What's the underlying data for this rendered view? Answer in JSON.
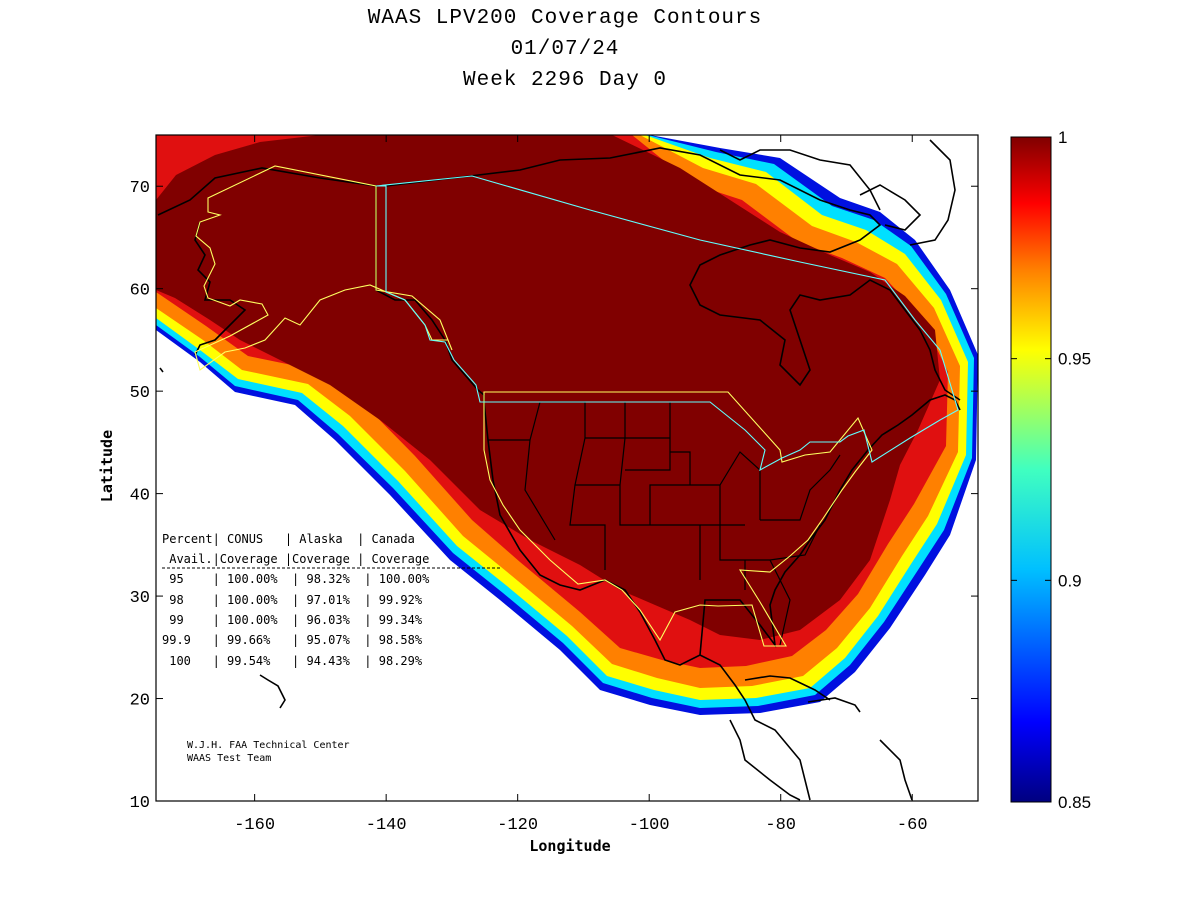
{
  "title": {
    "line1": "WAAS LPV200 Coverage Contours",
    "line2": "01/07/24",
    "line3": "Week 2296 Day 0"
  },
  "axes": {
    "xlabel": "Longitude",
    "ylabel": "Latitude",
    "xlim": [
      -175,
      -50
    ],
    "ylim": [
      10,
      75
    ],
    "xticks": [
      -160,
      -140,
      -120,
      -100,
      -80,
      -60
    ],
    "yticks": [
      10,
      20,
      30,
      40,
      50,
      60,
      70
    ]
  },
  "colorbar": {
    "range": [
      0.85,
      1
    ],
    "ticks": [
      {
        "value": 1,
        "label": "1"
      },
      {
        "value": 0.95,
        "label": "0.95"
      },
      {
        "value": 0.9,
        "label": "0.9"
      },
      {
        "value": 0.85,
        "label": "0.85"
      }
    ],
    "colormap": "jet"
  },
  "colors": {
    "full_coverage": "#800000",
    "contour_red": "#e01010",
    "contour_orange": "#ff8000",
    "contour_yellow": "#ffff00",
    "contour_cyan": "#00e0ff",
    "contour_blue": "#0010e0",
    "conus_alaska_boundary": "#ffff60",
    "canada_boundary": "#60ffff"
  },
  "table": {
    "header1": "Percent| CONUS   | Alaska  | Canada",
    "header2": " Avail.|Coverage |Coverage | Coverage",
    "rows": [
      " 95    | 100.00%  | 98.32%  | 100.00%",
      " 98    | 100.00%  | 97.01%  | 99.92%",
      " 99    | 100.00%  | 96.03%  | 99.34%",
      "99.9   | 99.66%   | 95.07%  | 98.58%",
      " 100   | 99.54%   | 94.43%  | 98.29%"
    ]
  },
  "credit": {
    "line1": "W.J.H. FAA Technical Center",
    "line2": "WAAS Test Team"
  }
}
